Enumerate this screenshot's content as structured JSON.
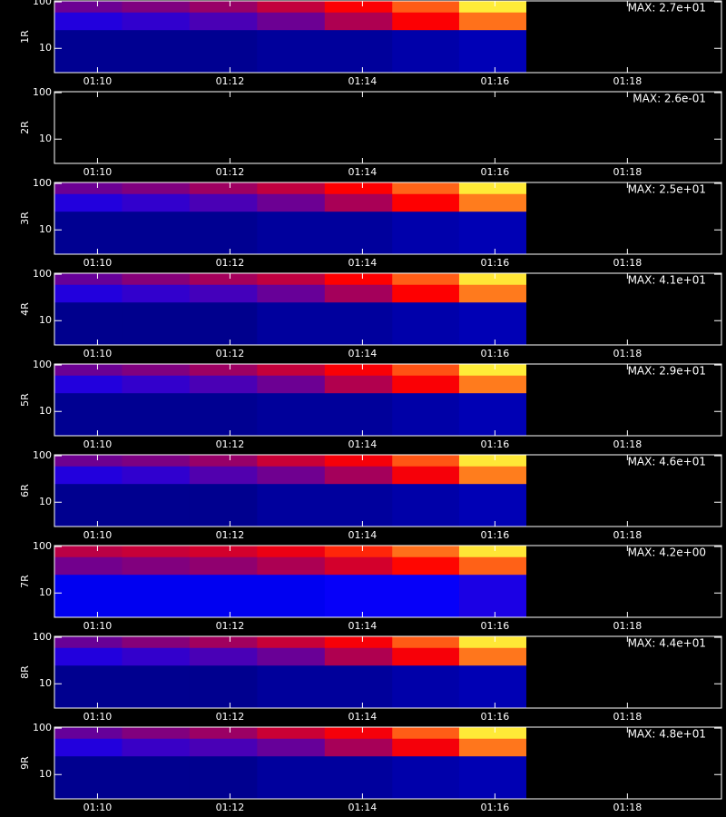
{
  "chart_data": [
    {
      "type": "heatmap",
      "ylabel": "1R",
      "max": {
        "value": 27,
        "label": "MAX: 2.7e+01"
      },
      "log_y": true,
      "xlim": [
        9.35,
        19.42
      ],
      "xticks": [
        {
          "value": 10,
          "label": "01:10"
        },
        {
          "value": 12,
          "label": "01:12"
        },
        {
          "value": 14,
          "label": "01:14"
        },
        {
          "value": 16,
          "label": "01:16"
        },
        {
          "value": 18,
          "label": "01:18"
        }
      ],
      "ylim": [
        3,
        105
      ],
      "yticks": [
        10,
        100
      ],
      "xbins": [
        9.35,
        10.37,
        11.39,
        12.41,
        13.43,
        14.45,
        15.46,
        16.47
      ],
      "ybins": [
        3,
        25,
        60,
        105
      ],
      "z": [
        [
          1.4,
          1.4,
          1.4,
          1.6,
          1.6,
          1.9,
          2.2
        ],
        [
          5.4,
          5.9,
          6.8,
          8.1,
          11,
          15,
          20
        ],
        [
          8.1,
          8.9,
          10,
          12,
          15,
          19,
          26
        ]
      ]
    },
    {
      "type": "heatmap",
      "ylabel": "2R",
      "max": {
        "value": 0.26,
        "label": "MAX: 2.6e-01"
      },
      "log_y": true,
      "xlim": [
        9.35,
        19.42
      ],
      "xticks": [
        {
          "value": 10,
          "label": "01:10"
        },
        {
          "value": 12,
          "label": "01:12"
        },
        {
          "value": 14,
          "label": "01:14"
        },
        {
          "value": 16,
          "label": "01:16"
        },
        {
          "value": 18,
          "label": "01:18"
        }
      ],
      "ylim": [
        3,
        105
      ],
      "yticks": [
        10,
        100
      ],
      "xbins": [
        9.35,
        10.37,
        11.39,
        12.41,
        13.43,
        14.45,
        15.46,
        16.47
      ],
      "ybins": [
        3,
        25,
        60,
        105
      ],
      "z": [
        [
          0,
          0,
          0,
          0,
          0,
          0,
          0
        ],
        [
          0,
          0,
          0,
          0,
          0,
          0,
          0
        ],
        [
          0,
          0,
          0,
          0,
          0,
          0,
          0
        ]
      ]
    },
    {
      "type": "heatmap",
      "ylabel": "3R",
      "max": {
        "value": 25,
        "label": "MAX: 2.5e+01"
      },
      "log_y": true,
      "xlim": [
        9.35,
        19.42
      ],
      "xticks": [
        {
          "value": 10,
          "label": "01:10"
        },
        {
          "value": 12,
          "label": "01:12"
        },
        {
          "value": 14,
          "label": "01:14"
        },
        {
          "value": 16,
          "label": "01:16"
        },
        {
          "value": 18,
          "label": "01:18"
        }
      ],
      "ylim": [
        3,
        105
      ],
      "yticks": [
        10,
        100
      ],
      "xbins": [
        9.35,
        10.37,
        11.39,
        12.41,
        13.43,
        14.45,
        15.46,
        16.47
      ],
      "ybins": [
        3,
        25,
        60,
        105
      ],
      "z": [
        [
          1.3,
          1.3,
          1.3,
          1.5,
          1.5,
          1.8,
          2
        ],
        [
          5,
          5.5,
          6.3,
          7.5,
          10,
          14,
          19
        ],
        [
          7.5,
          8.3,
          9.5,
          11,
          14,
          18,
          24
        ]
      ]
    },
    {
      "type": "heatmap",
      "ylabel": "4R",
      "max": {
        "value": 41,
        "label": "MAX: 4.1e+01"
      },
      "log_y": true,
      "xlim": [
        9.35,
        19.42
      ],
      "xticks": [
        {
          "value": 10,
          "label": "01:10"
        },
        {
          "value": 12,
          "label": "01:12"
        },
        {
          "value": 14,
          "label": "01:14"
        },
        {
          "value": 16,
          "label": "01:16"
        },
        {
          "value": 18,
          "label": "01:18"
        }
      ],
      "ylim": [
        3,
        105
      ],
      "yticks": [
        10,
        100
      ],
      "xbins": [
        9.35,
        10.37,
        11.39,
        12.41,
        13.43,
        14.45,
        15.46,
        16.47
      ],
      "ybins": [
        3,
        25,
        60,
        105
      ],
      "z": [
        [
          2,
          2,
          2,
          2.5,
          2.5,
          2.9,
          3.3
        ],
        [
          8.2,
          9,
          10,
          12,
          16,
          23,
          31
        ],
        [
          12,
          14,
          16,
          18,
          23,
          29,
          39
        ]
      ]
    },
    {
      "type": "heatmap",
      "ylabel": "5R",
      "max": {
        "value": 29,
        "label": "MAX: 2.9e+01"
      },
      "log_y": true,
      "xlim": [
        9.35,
        19.42
      ],
      "xticks": [
        {
          "value": 10,
          "label": "01:10"
        },
        {
          "value": 12,
          "label": "01:12"
        },
        {
          "value": 14,
          "label": "01:14"
        },
        {
          "value": 16,
          "label": "01:16"
        },
        {
          "value": 18,
          "label": "01:18"
        }
      ],
      "ylim": [
        3,
        105
      ],
      "yticks": [
        10,
        100
      ],
      "xbins": [
        9.35,
        10.37,
        11.39,
        12.41,
        13.43,
        14.45,
        15.46,
        16.47
      ],
      "ybins": [
        3,
        25,
        60,
        105
      ],
      "z": [
        [
          1.5,
          1.5,
          1.5,
          1.7,
          1.7,
          2,
          2.3
        ],
        [
          5.8,
          6.4,
          7.3,
          8.7,
          12,
          16,
          22
        ],
        [
          8.7,
          9.6,
          11,
          13,
          16,
          20,
          28
        ]
      ]
    },
    {
      "type": "heatmap",
      "ylabel": "6R",
      "max": {
        "value": 46,
        "label": "MAX: 4.6e+01"
      },
      "log_y": true,
      "xlim": [
        9.35,
        19.42
      ],
      "xticks": [
        {
          "value": 10,
          "label": "01:10"
        },
        {
          "value": 12,
          "label": "01:12"
        },
        {
          "value": 14,
          "label": "01:14"
        },
        {
          "value": 16,
          "label": "01:16"
        },
        {
          "value": 18,
          "label": "01:18"
        }
      ],
      "ylim": [
        3,
        105
      ],
      "yticks": [
        10,
        100
      ],
      "xbins": [
        9.35,
        10.37,
        11.39,
        12.41,
        13.43,
        14.45,
        15.46,
        16.47
      ],
      "ybins": [
        3,
        25,
        60,
        105
      ],
      "z": [
        [
          2.3,
          2.3,
          2.3,
          2.8,
          2.8,
          3.2,
          3.7
        ],
        [
          9.2,
          10,
          12,
          14,
          18,
          25,
          35
        ],
        [
          14,
          15,
          17,
          21,
          25,
          32,
          44
        ]
      ]
    },
    {
      "type": "heatmap",
      "ylabel": "7R",
      "max": {
        "value": 4.2,
        "label": "MAX: 4.2e+00"
      },
      "log_y": true,
      "xlim": [
        9.35,
        19.42
      ],
      "xticks": [
        {
          "value": 10,
          "label": "01:10"
        },
        {
          "value": 12,
          "label": "01:12"
        },
        {
          "value": 14,
          "label": "01:14"
        },
        {
          "value": 16,
          "label": "01:16"
        },
        {
          "value": 18,
          "label": "01:18"
        }
      ],
      "ylim": [
        3,
        105
      ],
      "yticks": [
        10,
        100
      ],
      "xbins": [
        9.35,
        10.37,
        11.39,
        12.41,
        13.43,
        14.45,
        15.46,
        16.47
      ],
      "ybins": [
        3,
        25,
        60,
        105
      ],
      "z": [
        [
          0.6,
          0.6,
          0.6,
          0.6,
          0.7,
          0.7,
          0.8
        ],
        [
          1.3,
          1.4,
          1.5,
          1.7,
          2,
          2.4,
          3
        ],
        [
          1.8,
          1.9,
          2,
          2.2,
          2.6,
          3.1,
          4
        ]
      ]
    },
    {
      "type": "heatmap",
      "ylabel": "8R",
      "max": {
        "value": 44,
        "label": "MAX: 4.4e+01"
      },
      "log_y": true,
      "xlim": [
        9.35,
        19.42
      ],
      "xticks": [
        {
          "value": 10,
          "label": "01:10"
        },
        {
          "value": 12,
          "label": "01:12"
        },
        {
          "value": 14,
          "label": "01:14"
        },
        {
          "value": 16,
          "label": "01:16"
        },
        {
          "value": 18,
          "label": "01:18"
        }
      ],
      "ylim": [
        3,
        105
      ],
      "yticks": [
        10,
        100
      ],
      "xbins": [
        9.35,
        10.37,
        11.39,
        12.41,
        13.43,
        14.45,
        15.46,
        16.47
      ],
      "ybins": [
        3,
        25,
        60,
        105
      ],
      "z": [
        [
          2.2,
          2.2,
          2.2,
          2.6,
          2.6,
          3.1,
          3.5
        ],
        [
          8.8,
          9.7,
          11,
          13,
          18,
          24,
          33
        ],
        [
          13,
          15,
          17,
          20,
          24,
          31,
          42
        ]
      ]
    },
    {
      "type": "heatmap",
      "ylabel": "9R",
      "max": {
        "value": 48,
        "label": "MAX: 4.8e+01"
      },
      "log_y": true,
      "xlim": [
        9.35,
        19.42
      ],
      "xticks": [
        {
          "value": 10,
          "label": "01:10"
        },
        {
          "value": 12,
          "label": "01:12"
        },
        {
          "value": 14,
          "label": "01:14"
        },
        {
          "value": 16,
          "label": "01:16"
        },
        {
          "value": 18,
          "label": "01:18"
        }
      ],
      "ylim": [
        3,
        105
      ],
      "yticks": [
        10,
        100
      ],
      "xbins": [
        9.35,
        10.37,
        11.39,
        12.41,
        13.43,
        14.45,
        15.46,
        16.47
      ],
      "ybins": [
        3,
        25,
        60,
        105
      ],
      "z": [
        [
          2.4,
          2.4,
          2.4,
          2.9,
          2.9,
          3.4,
          3.8
        ],
        [
          9.6,
          11,
          12,
          14,
          19,
          26,
          36
        ],
        [
          14,
          16,
          18,
          22,
          26,
          34,
          46
        ]
      ]
    }
  ]
}
